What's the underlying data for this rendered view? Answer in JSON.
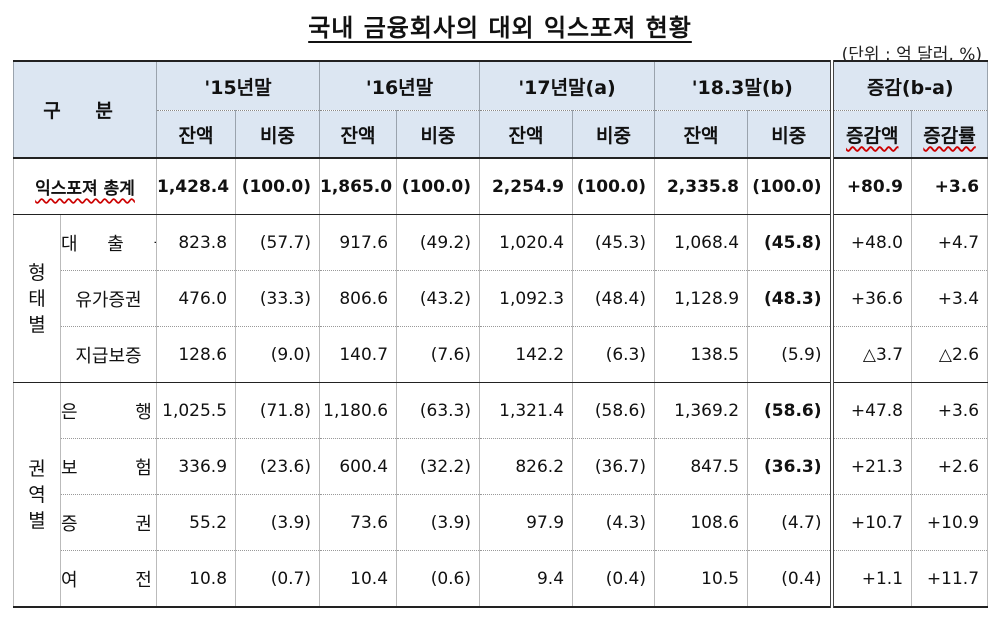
{
  "title": "국내 금융회사의 대외 익스포져 현황",
  "unit": "(단위 : 억 달러, %)",
  "header": {
    "gubun": "구 분",
    "periods": [
      "'15년말",
      "'16년말",
      "'17년말(a)",
      "'18.3말(b)",
      "증감(b-a)"
    ],
    "sub": [
      "잔액",
      "비중",
      "잔액",
      "비중",
      "잔액",
      "비중",
      "잔액",
      "비중",
      "증감액",
      "증감률"
    ]
  },
  "total": {
    "label": "익스포져 총계",
    "values": [
      "1,428.4",
      "(100.0)",
      "1,865.0",
      "(100.0)",
      "2,254.9",
      "(100.0)",
      "2,335.8",
      "(100.0)",
      "+80.9",
      "+3.6"
    ]
  },
  "groups": [
    {
      "name": "형태별",
      "rows": [
        {
          "label": "대 출 금",
          "values": [
            "823.8",
            "(57.7)",
            "917.6",
            "(49.2)",
            "1,020.4",
            "(45.3)",
            "1,068.4",
            "(45.8)",
            "+48.0",
            "+4.7"
          ]
        },
        {
          "label": "유가증권",
          "values": [
            "476.0",
            "(33.3)",
            "806.6",
            "(43.2)",
            "1,092.3",
            "(48.4)",
            "1,128.9",
            "(48.3)",
            "+36.6",
            "+3.4"
          ]
        },
        {
          "label": "지급보증",
          "values": [
            "128.6",
            "(9.0)",
            "140.7",
            "(7.6)",
            "142.2",
            "(6.3)",
            "138.5",
            "(5.9)",
            "△3.7",
            "△2.6"
          ]
        }
      ]
    },
    {
      "name": "권역별",
      "rows": [
        {
          "label": "은 행",
          "values": [
            "1,025.5",
            "(71.8)",
            "1,180.6",
            "(63.3)",
            "1,321.4",
            "(58.6)",
            "1,369.2",
            "(58.6)",
            "+47.8",
            "+3.6"
          ]
        },
        {
          "label": "보 험",
          "values": [
            "336.9",
            "(23.6)",
            "600.4",
            "(32.2)",
            "826.2",
            "(36.7)",
            "847.5",
            "(36.3)",
            "+21.3",
            "+2.6"
          ]
        },
        {
          "label": "증 권",
          "values": [
            "55.2",
            "(3.9)",
            "73.6",
            "(3.9)",
            "97.9",
            "(4.3)",
            "108.6",
            "(4.7)",
            "+10.7",
            "+10.9"
          ]
        },
        {
          "label": "여 전",
          "values": [
            "10.8",
            "(0.7)",
            "10.4",
            "(0.6)",
            "9.4",
            "(0.4)",
            "10.5",
            "(0.4)",
            "+1.1",
            "+11.7"
          ]
        }
      ]
    }
  ]
}
